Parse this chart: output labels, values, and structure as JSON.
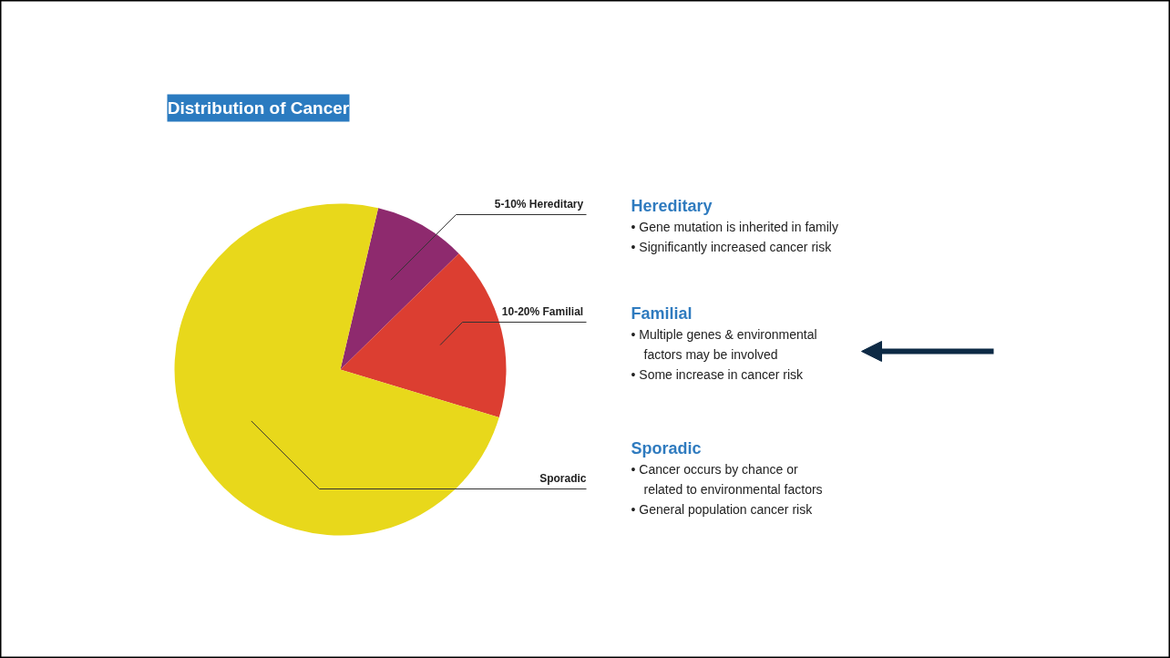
{
  "chart_data": {
    "type": "pie",
    "title": "Distribution of Cancer",
    "categories": [
      "5-10%  Hereditary",
      "10-20%  Familial",
      "Sporadic"
    ],
    "values": [
      9,
      17,
      74
    ],
    "colors": [
      "#8e2a6e",
      "#dc3e31",
      "#e8d81b"
    ],
    "legend": false,
    "annotations": [
      "Hereditary",
      "• Gene mutation is inherited in family",
      "• Significantly increased cancer risk",
      "Familial",
      "• Multiple genes & environmental",
      "factors may be involved",
      "• Some increase in cancer risk",
      "Sporadic",
      "• Cancer occurs by chance or",
      "related to environmental factors",
      "• General population cancer risk"
    ]
  }
}
